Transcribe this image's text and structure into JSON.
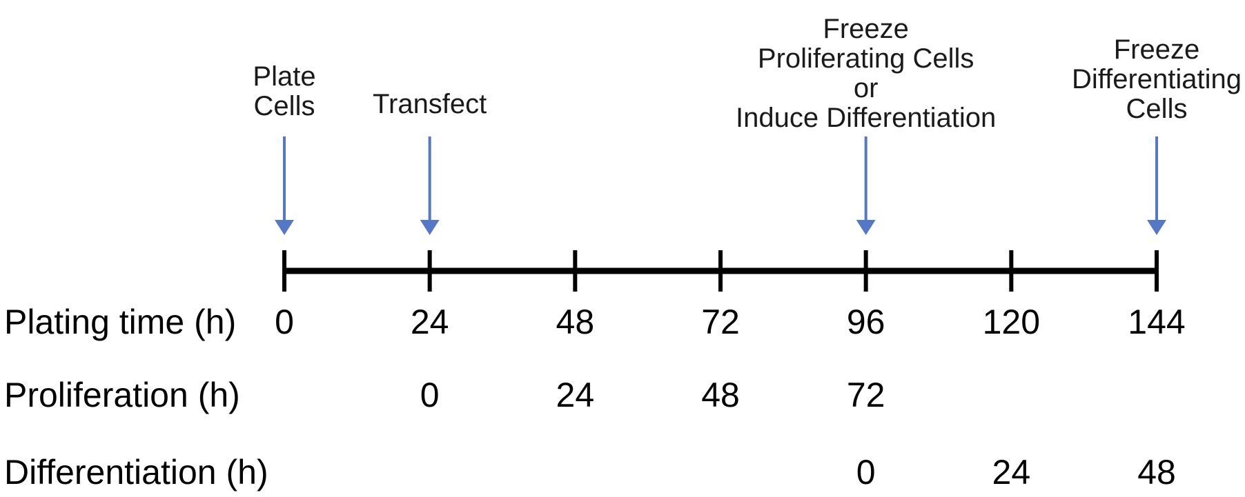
{
  "events": [
    {
      "id": "plate-cells",
      "time": 0,
      "lines": [
        "Plate",
        "Cells"
      ]
    },
    {
      "id": "transfect",
      "time": 24,
      "lines": [
        "Transfect"
      ]
    },
    {
      "id": "freeze-proliferating-or-induce",
      "time": 96,
      "lines": [
        "Freeze",
        "Proliferating Cells",
        "or",
        "Induce Differentiation"
      ]
    },
    {
      "id": "freeze-differentiating",
      "time": 144,
      "lines": [
        "Freeze",
        "Differentiating",
        "Cells"
      ]
    }
  ],
  "ticks": [
    0,
    24,
    48,
    72,
    96,
    120,
    144
  ],
  "rows": [
    {
      "id": "plating-time",
      "label": "Plating time (h)",
      "values": [
        "0",
        "24",
        "48",
        "72",
        "96",
        "120",
        "144"
      ]
    },
    {
      "id": "proliferation",
      "label": "Proliferation (h)",
      "values": [
        "",
        "0",
        "24",
        "48",
        "72",
        "",
        ""
      ]
    },
    {
      "id": "differentiation",
      "label": "Differentiation (h)",
      "values": [
        "",
        "",
        "",
        "",
        "0",
        "24",
        "48"
      ]
    }
  ],
  "colors": {
    "arrow": "#5577c8",
    "axis": "#000000",
    "text": "#000000"
  }
}
